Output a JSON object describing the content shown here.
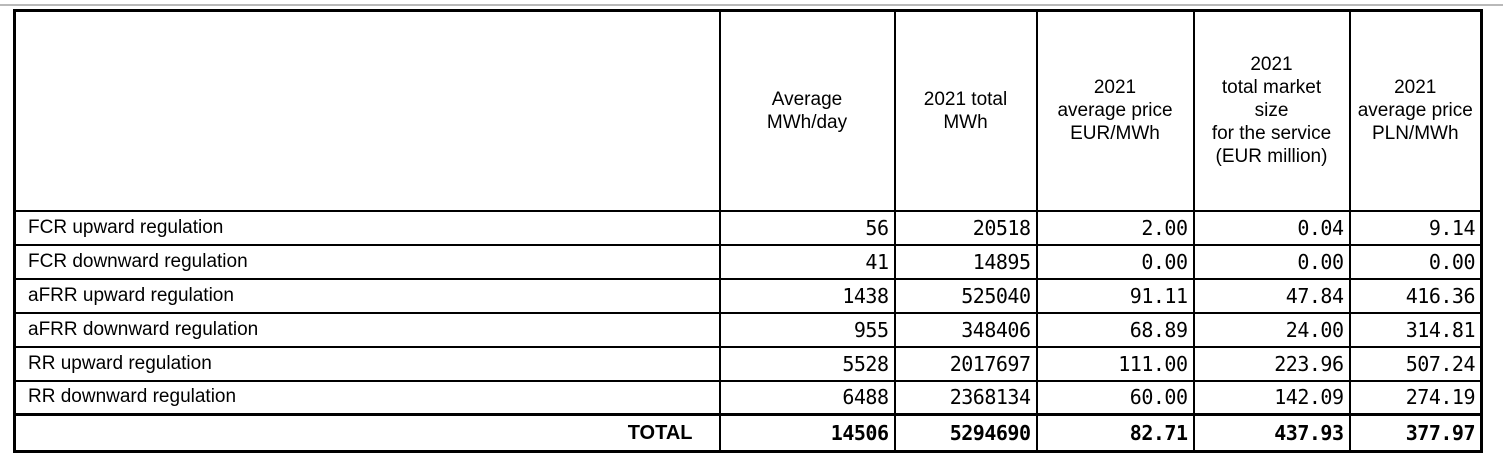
{
  "table": {
    "header": {
      "row_label_column": "",
      "columns": [
        "Average\nMWh/day",
        "2021 total\nMWh",
        "2021\naverage price\nEUR/MWh",
        "2021\ntotal market\nsize\nfor the service\n(EUR million)",
        "2021\naverage price\nPLN/MWh"
      ]
    },
    "rows": [
      {
        "label": "FCR upward regulation",
        "values": [
          "56",
          "20518",
          "2.00",
          "0.04",
          "9.14"
        ]
      },
      {
        "label": "FCR downward regulation",
        "values": [
          "41",
          "14895",
          "0.00",
          "0.00",
          "0.00"
        ]
      },
      {
        "label": "aFRR upward regulation",
        "values": [
          "1438",
          "525040",
          "91.11",
          "47.84",
          "416.36"
        ]
      },
      {
        "label": "aFRR downward regulation",
        "values": [
          "955",
          "348406",
          "68.89",
          "24.00",
          "314.81"
        ]
      },
      {
        "label": "RR upward regulation",
        "values": [
          "5528",
          "2017697",
          "111.00",
          "223.96",
          "507.24"
        ]
      },
      {
        "label": "RR downward regulation",
        "values": [
          "6488",
          "2368134",
          "60.00",
          "142.09",
          "274.19"
        ]
      }
    ],
    "total": {
      "label": "TOTAL",
      "values": [
        "14506",
        "5294690",
        "82.71",
        "437.93",
        "377.97"
      ]
    }
  },
  "colors": {
    "border": "#000000",
    "top_rule": "#b9b9b9",
    "background": "#ffffff",
    "text": "#000000"
  }
}
